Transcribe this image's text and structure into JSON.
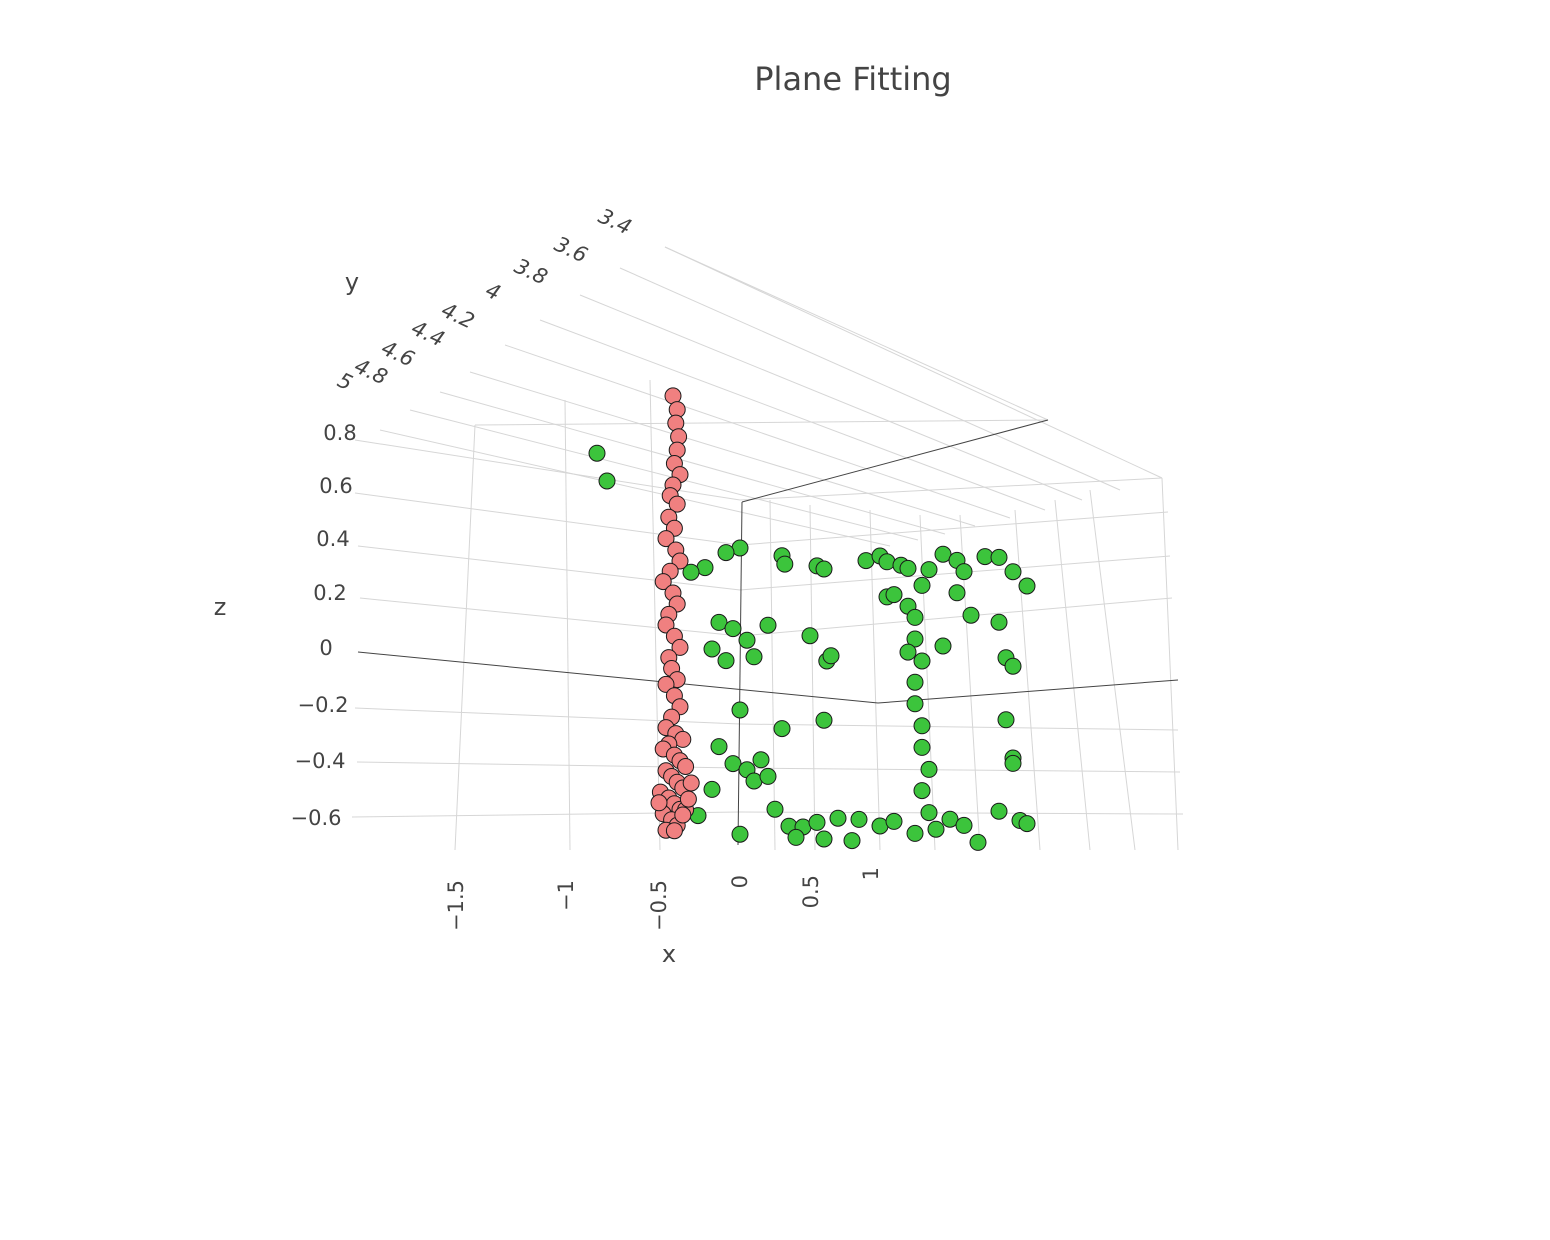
{
  "chart_data": {
    "type": "scatter",
    "title": "Plane Fitting",
    "xlabel": "x",
    "ylabel": "y",
    "zlabel": "z",
    "x_ticks": [
      "−1.5",
      "−1",
      "−0.5",
      "0",
      "0.5",
      "1"
    ],
    "y_ticks": [
      "3.4",
      "3.6",
      "3.8",
      "4",
      "4.2",
      "4.4",
      "4.6",
      "4.8",
      "5"
    ],
    "z_ticks": [
      "0.8",
      "0.6",
      "0.4",
      "0.2",
      "0",
      "−0.2",
      "−0.4",
      "−0.6"
    ],
    "colors": {
      "inliers": "#f08080",
      "outliers": "#3cc43c",
      "marker_edge": "#1a1a1a"
    },
    "series": [
      {
        "color": "#3cc43c",
        "points": [
          [
            -1.05,
            4.1,
            0.72
          ],
          [
            -0.95,
            4.2,
            0.62
          ],
          [
            0.0,
            4.2,
            0.4
          ],
          [
            -0.1,
            4.2,
            0.38
          ],
          [
            -0.25,
            4.2,
            0.32
          ],
          [
            -0.35,
            4.2,
            0.3
          ],
          [
            0.3,
            4.2,
            0.38
          ],
          [
            0.32,
            4.2,
            0.35
          ],
          [
            0.55,
            4.2,
            0.35
          ],
          [
            0.6,
            4.2,
            0.34
          ],
          [
            0.9,
            4.2,
            0.38
          ],
          [
            1.0,
            4.2,
            0.4
          ],
          [
            1.05,
            4.2,
            0.38
          ],
          [
            1.15,
            4.2,
            0.37
          ],
          [
            1.2,
            4.2,
            0.36
          ],
          [
            1.3,
            4.2,
            0.3
          ],
          [
            1.35,
            4.2,
            0.36
          ],
          [
            1.45,
            4.2,
            0.42
          ],
          [
            1.55,
            4.2,
            0.4
          ],
          [
            1.6,
            4.2,
            0.36
          ],
          [
            1.75,
            4.2,
            0.42
          ],
          [
            1.85,
            4.2,
            0.42
          ],
          [
            1.95,
            4.2,
            0.37
          ],
          [
            2.05,
            4.2,
            0.32
          ],
          [
            -0.15,
            4.2,
            0.12
          ],
          [
            -0.05,
            4.2,
            0.1
          ],
          [
            0.05,
            4.2,
            0.06
          ],
          [
            0.1,
            4.2,
            0.0
          ],
          [
            -0.2,
            4.2,
            0.02
          ],
          [
            -0.1,
            4.2,
            -0.02
          ],
          [
            0.2,
            4.2,
            0.12
          ],
          [
            0.5,
            4.2,
            0.09
          ],
          [
            0.62,
            4.2,
            0.0
          ],
          [
            0.65,
            4.2,
            0.02
          ],
          [
            0.0,
            4.2,
            -0.2
          ],
          [
            0.3,
            4.2,
            -0.26
          ],
          [
            0.6,
            4.2,
            -0.22
          ],
          [
            1.05,
            4.2,
            0.25
          ],
          [
            1.1,
            4.2,
            0.26
          ],
          [
            1.2,
            4.2,
            0.22
          ],
          [
            1.25,
            4.2,
            0.18
          ],
          [
            1.25,
            4.2,
            0.1
          ],
          [
            1.2,
            4.2,
            0.05
          ],
          [
            1.3,
            4.2,
            0.02
          ],
          [
            1.25,
            4.2,
            -0.06
          ],
          [
            1.25,
            4.2,
            -0.14
          ],
          [
            1.3,
            4.2,
            -0.22
          ],
          [
            1.3,
            4.2,
            -0.3
          ],
          [
            1.35,
            4.2,
            -0.38
          ],
          [
            1.3,
            4.2,
            -0.46
          ],
          [
            1.35,
            4.2,
            -0.54
          ],
          [
            1.55,
            4.2,
            0.28
          ],
          [
            1.65,
            4.2,
            0.2
          ],
          [
            1.85,
            4.2,
            0.18
          ],
          [
            1.9,
            4.2,
            0.05
          ],
          [
            1.95,
            4.2,
            0.02
          ],
          [
            1.9,
            4.2,
            -0.18
          ],
          [
            1.95,
            4.2,
            -0.32
          ],
          [
            1.95,
            4.2,
            -0.34
          ],
          [
            1.45,
            4.2,
            0.08
          ],
          [
            -0.15,
            4.2,
            -0.34
          ],
          [
            -0.05,
            4.2,
            -0.4
          ],
          [
            0.05,
            4.2,
            -0.42
          ],
          [
            0.1,
            4.2,
            -0.46
          ],
          [
            0.15,
            4.2,
            -0.38
          ],
          [
            0.2,
            4.2,
            -0.44
          ],
          [
            0.25,
            4.2,
            -0.56
          ],
          [
            0.35,
            4.2,
            -0.62
          ],
          [
            0.45,
            4.2,
            -0.62
          ],
          [
            0.55,
            4.2,
            -0.6
          ],
          [
            0.7,
            4.2,
            -0.58
          ],
          [
            0.85,
            4.2,
            -0.58
          ],
          [
            1.0,
            4.2,
            -0.6
          ],
          [
            1.1,
            4.2,
            -0.58
          ],
          [
            1.25,
            4.2,
            -0.62
          ],
          [
            1.4,
            4.2,
            -0.6
          ],
          [
            1.5,
            4.2,
            -0.56
          ],
          [
            1.6,
            4.2,
            -0.58
          ],
          [
            1.7,
            4.2,
            -0.64
          ],
          [
            1.85,
            4.2,
            -0.52
          ],
          [
            2.0,
            4.2,
            -0.55
          ],
          [
            2.05,
            4.2,
            -0.56
          ],
          [
            -0.3,
            4.2,
            -0.6
          ],
          [
            -0.2,
            4.2,
            -0.5
          ],
          [
            0.0,
            4.2,
            -0.66
          ],
          [
            0.4,
            4.2,
            -0.66
          ],
          [
            0.6,
            4.2,
            -0.66
          ],
          [
            0.8,
            4.2,
            -0.66
          ]
        ]
      },
      {
        "color": "#f08080",
        "points": [
          [
            -0.45,
            4.3,
            0.95
          ],
          [
            -0.42,
            4.3,
            0.9
          ],
          [
            -0.43,
            4.3,
            0.85
          ],
          [
            -0.41,
            4.3,
            0.8
          ],
          [
            -0.42,
            4.3,
            0.75
          ],
          [
            -0.44,
            4.3,
            0.7
          ],
          [
            -0.4,
            4.3,
            0.66
          ],
          [
            -0.45,
            4.3,
            0.62
          ],
          [
            -0.47,
            4.3,
            0.58
          ],
          [
            -0.42,
            4.3,
            0.55
          ],
          [
            -0.48,
            4.3,
            0.5
          ],
          [
            -0.44,
            4.3,
            0.46
          ],
          [
            -0.5,
            4.3,
            0.42
          ],
          [
            -0.43,
            4.3,
            0.38
          ],
          [
            -0.4,
            4.3,
            0.34
          ],
          [
            -0.47,
            4.3,
            0.3
          ],
          [
            -0.52,
            4.3,
            0.26
          ],
          [
            -0.45,
            4.3,
            0.22
          ],
          [
            -0.42,
            4.3,
            0.18
          ],
          [
            -0.48,
            4.3,
            0.14
          ],
          [
            -0.5,
            4.3,
            0.1
          ],
          [
            -0.44,
            4.3,
            0.06
          ],
          [
            -0.4,
            4.3,
            0.02
          ],
          [
            -0.48,
            4.3,
            -0.02
          ],
          [
            -0.46,
            4.3,
            -0.06
          ],
          [
            -0.42,
            4.3,
            -0.1
          ],
          [
            -0.5,
            4.3,
            -0.12
          ],
          [
            -0.44,
            4.3,
            -0.16
          ],
          [
            -0.4,
            4.3,
            -0.2
          ],
          [
            -0.46,
            4.3,
            -0.24
          ],
          [
            -0.5,
            4.3,
            -0.28
          ],
          [
            -0.43,
            4.3,
            -0.3
          ],
          [
            -0.38,
            4.3,
            -0.32
          ],
          [
            -0.48,
            4.3,
            -0.34
          ],
          [
            -0.52,
            4.3,
            -0.36
          ],
          [
            -0.44,
            4.3,
            -0.38
          ],
          [
            -0.4,
            4.3,
            -0.4
          ],
          [
            -0.36,
            4.3,
            -0.42
          ],
          [
            -0.5,
            4.3,
            -0.44
          ],
          [
            -0.46,
            4.3,
            -0.46
          ],
          [
            -0.42,
            4.3,
            -0.48
          ],
          [
            -0.38,
            4.3,
            -0.5
          ],
          [
            -0.54,
            4.3,
            -0.52
          ],
          [
            -0.48,
            4.3,
            -0.54
          ],
          [
            -0.44,
            4.3,
            -0.56
          ],
          [
            -0.4,
            4.3,
            -0.58
          ],
          [
            -0.36,
            4.3,
            -0.58
          ],
          [
            -0.52,
            4.3,
            -0.6
          ],
          [
            -0.46,
            4.3,
            -0.62
          ],
          [
            -0.42,
            4.3,
            -0.64
          ],
          [
            -0.38,
            4.3,
            -0.6
          ],
          [
            -0.5,
            4.3,
            -0.66
          ],
          [
            -0.44,
            4.3,
            -0.66
          ],
          [
            -0.34,
            4.3,
            -0.54
          ],
          [
            -0.32,
            4.3,
            -0.48
          ],
          [
            -0.55,
            4.3,
            -0.56
          ]
        ]
      }
    ]
  }
}
